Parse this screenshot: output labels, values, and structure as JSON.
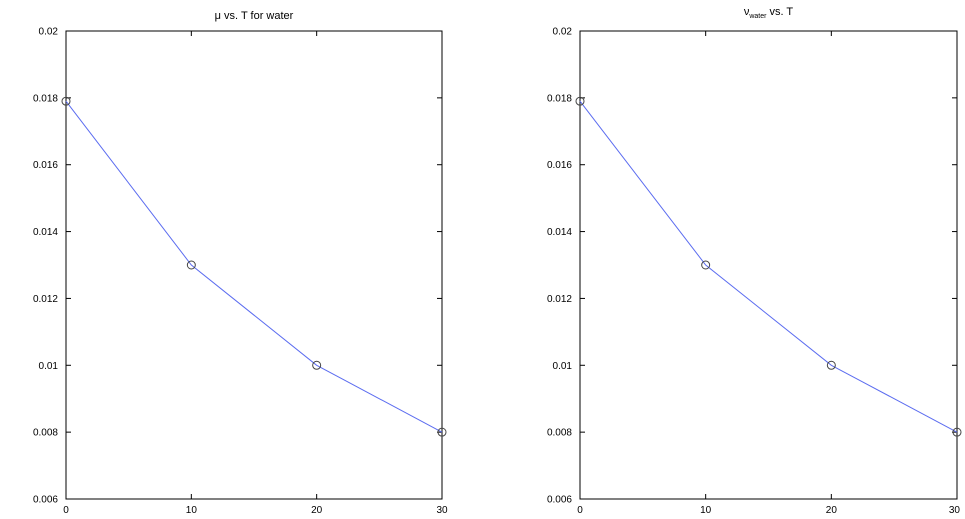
{
  "chart_data": [
    {
      "type": "line",
      "title": "μ vs. T for water",
      "title_parts": {
        "main": "μ vs. T for water",
        "sub": "",
        "rest": ""
      },
      "x": [
        0,
        10,
        20,
        30
      ],
      "series": [
        {
          "values": [
            0.0179,
            0.013,
            0.01,
            0.008
          ]
        }
      ],
      "xlim": [
        0,
        30
      ],
      "ylim": [
        0.006,
        0.02
      ],
      "xticks": [
        "0",
        "10",
        "20",
        "30"
      ],
      "yticks": [
        "0.006",
        "0.008",
        "0.01",
        "0.012",
        "0.014",
        "0.016",
        "0.018",
        "0.02"
      ],
      "xlabel": "",
      "ylabel": "",
      "line_color": "#5b6cf0",
      "marker": "circle",
      "grid": false
    },
    {
      "type": "line",
      "title": "ν water vs. T",
      "title_parts": {
        "main": "ν",
        "sub": "water",
        "rest": " vs. T"
      },
      "x": [
        0,
        10,
        20,
        30
      ],
      "series": [
        {
          "values": [
            0.0179,
            0.013,
            0.01,
            0.008
          ]
        }
      ],
      "xlim": [
        0,
        30
      ],
      "ylim": [
        0.006,
        0.02
      ],
      "xticks": [
        "0",
        "10",
        "20",
        "30"
      ],
      "yticks": [
        "0.006",
        "0.008",
        "0.01",
        "0.012",
        "0.014",
        "0.016",
        "0.018",
        "0.02"
      ],
      "xlabel": "",
      "ylabel": "",
      "line_color": "#5b6cf0",
      "marker": "circle",
      "grid": false
    }
  ]
}
